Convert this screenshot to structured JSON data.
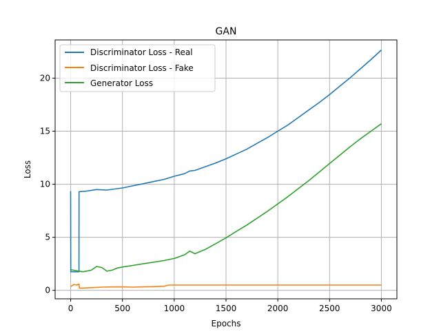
{
  "chart_data": {
    "type": "line",
    "title": "GAN",
    "xlabel": "Epochs",
    "ylabel": "Loss",
    "xlim": [
      -150,
      3150
    ],
    "ylim": [
      -0.8,
      23.6
    ],
    "xticks": [
      0,
      500,
      1000,
      1500,
      2000,
      2500,
      3000
    ],
    "yticks": [
      0,
      5,
      10,
      15,
      20
    ],
    "grid": true,
    "legend_position": "top-left",
    "series": [
      {
        "name": "Discriminator Loss - Real",
        "color": "#1f77b4",
        "points": [
          [
            0,
            9.35
          ],
          [
            1,
            1.75
          ],
          [
            80,
            1.75
          ],
          [
            81,
            9.3
          ],
          [
            150,
            9.35
          ],
          [
            250,
            9.5
          ],
          [
            350,
            9.45
          ],
          [
            500,
            9.65
          ],
          [
            600,
            9.85
          ],
          [
            700,
            10.05
          ],
          [
            800,
            10.25
          ],
          [
            900,
            10.45
          ],
          [
            1000,
            10.75
          ],
          [
            1100,
            11.0
          ],
          [
            1150,
            11.25
          ],
          [
            1200,
            11.3
          ],
          [
            1300,
            11.65
          ],
          [
            1400,
            12.0
          ],
          [
            1500,
            12.4
          ],
          [
            1600,
            12.85
          ],
          [
            1700,
            13.3
          ],
          [
            1800,
            13.85
          ],
          [
            1900,
            14.4
          ],
          [
            2000,
            15.0
          ],
          [
            2100,
            15.6
          ],
          [
            2200,
            16.3
          ],
          [
            2300,
            17.0
          ],
          [
            2400,
            17.7
          ],
          [
            2500,
            18.45
          ],
          [
            2600,
            19.25
          ],
          [
            2700,
            20.05
          ],
          [
            2800,
            20.9
          ],
          [
            2900,
            21.75
          ],
          [
            3000,
            22.65
          ]
        ]
      },
      {
        "name": "Discriminator Loss - Fake",
        "color": "#ff7f0e",
        "points": [
          [
            0,
            0.35
          ],
          [
            30,
            0.55
          ],
          [
            60,
            0.5
          ],
          [
            80,
            0.6
          ],
          [
            85,
            0.2
          ],
          [
            200,
            0.25
          ],
          [
            300,
            0.3
          ],
          [
            400,
            0.32
          ],
          [
            500,
            0.33
          ],
          [
            600,
            0.3
          ],
          [
            700,
            0.33
          ],
          [
            800,
            0.35
          ],
          [
            900,
            0.38
          ],
          [
            950,
            0.5
          ],
          [
            1100,
            0.5
          ],
          [
            1500,
            0.5
          ],
          [
            2000,
            0.5
          ],
          [
            2500,
            0.5
          ],
          [
            3000,
            0.5
          ]
        ]
      },
      {
        "name": "Generator Loss",
        "color": "#2ca02c",
        "points": [
          [
            0,
            1.95
          ],
          [
            80,
            1.8
          ],
          [
            120,
            1.75
          ],
          [
            200,
            1.9
          ],
          [
            250,
            2.25
          ],
          [
            300,
            2.15
          ],
          [
            350,
            1.8
          ],
          [
            400,
            1.9
          ],
          [
            450,
            2.1
          ],
          [
            500,
            2.2
          ],
          [
            600,
            2.35
          ],
          [
            700,
            2.5
          ],
          [
            800,
            2.65
          ],
          [
            900,
            2.8
          ],
          [
            1000,
            3.0
          ],
          [
            1100,
            3.35
          ],
          [
            1150,
            3.7
          ],
          [
            1200,
            3.45
          ],
          [
            1300,
            3.85
          ],
          [
            1400,
            4.4
          ],
          [
            1500,
            4.95
          ],
          [
            1600,
            5.55
          ],
          [
            1700,
            6.15
          ],
          [
            1800,
            6.8
          ],
          [
            1900,
            7.45
          ],
          [
            2000,
            8.15
          ],
          [
            2100,
            8.85
          ],
          [
            2200,
            9.6
          ],
          [
            2300,
            10.35
          ],
          [
            2400,
            11.15
          ],
          [
            2500,
            11.95
          ],
          [
            2600,
            12.75
          ],
          [
            2700,
            13.55
          ],
          [
            2800,
            14.3
          ],
          [
            2900,
            15.0
          ],
          [
            3000,
            15.7
          ]
        ]
      }
    ]
  }
}
